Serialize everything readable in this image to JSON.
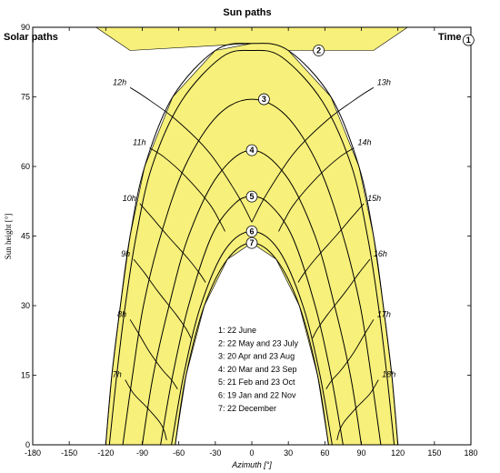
{
  "chart_data": {
    "type": "line",
    "title": "Sun paths",
    "xlabel": "Azimuth [°]",
    "ylabel": "Sun height [°]",
    "xlim": [
      -180,
      180
    ],
    "ylim": [
      0,
      90
    ],
    "x_ticks": [
      "-180",
      "-150",
      "-120",
      "-90",
      "-60",
      "-30",
      "0",
      "30",
      "60",
      "90",
      "120",
      "150",
      "180"
    ],
    "y_ticks": [
      "0",
      "15",
      "30",
      "45",
      "60",
      "75",
      "90"
    ],
    "overlay_labels": {
      "left": "Solar paths",
      "right": "Time"
    },
    "fill_color": "#f7f07a",
    "series": [
      {
        "marker": "1",
        "points": [
          [
            -120,
            0
          ],
          [
            -115,
            15
          ],
          [
            -108,
            30
          ],
          [
            -100,
            45
          ],
          [
            -88,
            60
          ],
          [
            -65,
            75
          ],
          [
            -30,
            85
          ],
          [
            0,
            86.5
          ],
          [
            30,
            85
          ],
          [
            65,
            75
          ],
          [
            88,
            60
          ],
          [
            100,
            45
          ],
          [
            108,
            30
          ],
          [
            115,
            15
          ],
          [
            120,
            0
          ]
        ]
      },
      {
        "marker": "2",
        "points": [
          [
            -117,
            0
          ],
          [
            -111,
            15
          ],
          [
            -104,
            30
          ],
          [
            -95,
            45
          ],
          [
            -82,
            60
          ],
          [
            -58,
            74
          ],
          [
            -25,
            83.5
          ],
          [
            0,
            85
          ],
          [
            25,
            83.5
          ],
          [
            58,
            74
          ],
          [
            82,
            60
          ],
          [
            95,
            45
          ],
          [
            104,
            30
          ],
          [
            111,
            15
          ],
          [
            117,
            0
          ]
        ]
      },
      {
        "marker": "3",
        "points": [
          [
            -106,
            0
          ],
          [
            -98,
            15
          ],
          [
            -89,
            30
          ],
          [
            -75,
            45
          ],
          [
            -55,
            60
          ],
          [
            -28,
            71
          ],
          [
            0,
            74.5
          ],
          [
            28,
            71
          ],
          [
            55,
            60
          ],
          [
            75,
            45
          ],
          [
            89,
            30
          ],
          [
            98,
            15
          ],
          [
            106,
            0
          ]
        ]
      },
      {
        "marker": "4",
        "points": [
          [
            -90,
            0
          ],
          [
            -81,
            15
          ],
          [
            -68,
            30
          ],
          [
            -52,
            45
          ],
          [
            -28,
            58
          ],
          [
            0,
            63.5
          ],
          [
            28,
            58
          ],
          [
            52,
            45
          ],
          [
            68,
            30
          ],
          [
            81,
            15
          ],
          [
            90,
            0
          ]
        ]
      },
      {
        "marker": "5",
        "points": [
          [
            -75,
            0
          ],
          [
            -65,
            15
          ],
          [
            -52,
            30
          ],
          [
            -33,
            45
          ],
          [
            -14,
            52
          ],
          [
            0,
            53.5
          ],
          [
            14,
            52
          ],
          [
            33,
            45
          ],
          [
            52,
            30
          ],
          [
            65,
            15
          ],
          [
            75,
            0
          ]
        ]
      },
      {
        "marker": "6",
        "points": [
          [
            -66,
            0
          ],
          [
            -56,
            15
          ],
          [
            -42,
            30
          ],
          [
            -22,
            42
          ],
          [
            0,
            46
          ],
          [
            22,
            42
          ],
          [
            42,
            30
          ],
          [
            56,
            15
          ],
          [
            66,
            0
          ]
        ]
      },
      {
        "marker": "7",
        "points": [
          [
            -63,
            0
          ],
          [
            -54,
            15
          ],
          [
            -39,
            30
          ],
          [
            -20,
            40
          ],
          [
            0,
            43.5
          ],
          [
            20,
            40
          ],
          [
            39,
            30
          ],
          [
            54,
            15
          ],
          [
            63,
            0
          ]
        ]
      }
    ],
    "hour_labels": [
      "7h",
      "8h",
      "9h",
      "10h",
      "11h",
      "12h",
      "13h",
      "14h",
      "15h",
      "16h",
      "17h",
      "18h"
    ],
    "hour_curves": [
      {
        "label": "7h",
        "points": [
          [
            -104,
            14
          ],
          [
            -97,
            11
          ],
          [
            -86,
            8
          ],
          [
            -76,
            5
          ],
          [
            -72,
            3
          ],
          [
            -70,
            1
          ]
        ]
      },
      {
        "label": "8h",
        "points": [
          [
            -100,
            27
          ],
          [
            -93,
            24
          ],
          [
            -84,
            20
          ],
          [
            -73,
            16
          ],
          [
            -66,
            14
          ],
          [
            -61,
            12
          ]
        ]
      },
      {
        "label": "9h",
        "points": [
          [
            -97,
            40
          ],
          [
            -88,
            37
          ],
          [
            -77,
            33
          ],
          [
            -62,
            28
          ],
          [
            -54,
            25
          ],
          [
            -50,
            23
          ]
        ]
      },
      {
        "label": "10h",
        "points": [
          [
            -92,
            52
          ],
          [
            -82,
            49
          ],
          [
            -69,
            45
          ],
          [
            -52,
            40
          ],
          [
            -43,
            37
          ],
          [
            -38,
            35
          ]
        ]
      },
      {
        "label": "11h",
        "points": [
          [
            -84,
            64
          ],
          [
            -72,
            62
          ],
          [
            -55,
            58
          ],
          [
            -35,
            52
          ],
          [
            -26,
            48
          ],
          [
            -22,
            46
          ]
        ]
      },
      {
        "label": "12h",
        "points": [
          [
            -100,
            77
          ],
          [
            -88,
            75
          ],
          [
            -62,
            70
          ],
          [
            -35,
            63
          ],
          [
            -12,
            54
          ],
          [
            0,
            48
          ]
        ]
      },
      {
        "label": "13h",
        "points": [
          [
            100,
            77
          ],
          [
            88,
            75
          ],
          [
            62,
            70
          ],
          [
            35,
            63
          ],
          [
            12,
            54
          ],
          [
            0,
            48
          ]
        ]
      },
      {
        "label": "14h",
        "points": [
          [
            84,
            64
          ],
          [
            72,
            62
          ],
          [
            55,
            58
          ],
          [
            35,
            52
          ],
          [
            26,
            48
          ],
          [
            22,
            46
          ]
        ]
      },
      {
        "label": "15h",
        "points": [
          [
            92,
            52
          ],
          [
            82,
            49
          ],
          [
            69,
            45
          ],
          [
            52,
            40
          ],
          [
            43,
            37
          ],
          [
            38,
            35
          ]
        ]
      },
      {
        "label": "16h",
        "points": [
          [
            97,
            40
          ],
          [
            88,
            37
          ],
          [
            77,
            33
          ],
          [
            62,
            28
          ],
          [
            54,
            25
          ],
          [
            50,
            23
          ]
        ]
      },
      {
        "label": "17h",
        "points": [
          [
            100,
            27
          ],
          [
            93,
            24
          ],
          [
            84,
            20
          ],
          [
            73,
            16
          ],
          [
            66,
            14
          ],
          [
            61,
            12
          ]
        ]
      },
      {
        "label": "18h",
        "points": [
          [
            104,
            14
          ],
          [
            97,
            11
          ],
          [
            86,
            8
          ],
          [
            76,
            5
          ],
          [
            72,
            3
          ],
          [
            70,
            1
          ]
        ]
      }
    ],
    "legend": [
      "1: 22 June",
      "2: 22 May and 23 July",
      "3: 20 Apr and 23 Aug",
      "4: 20 Mar and 23 Sep",
      "5: 21 Feb and 23 Oct",
      "6: 19 Jan and 22 Nov",
      "7: 22 December"
    ]
  }
}
